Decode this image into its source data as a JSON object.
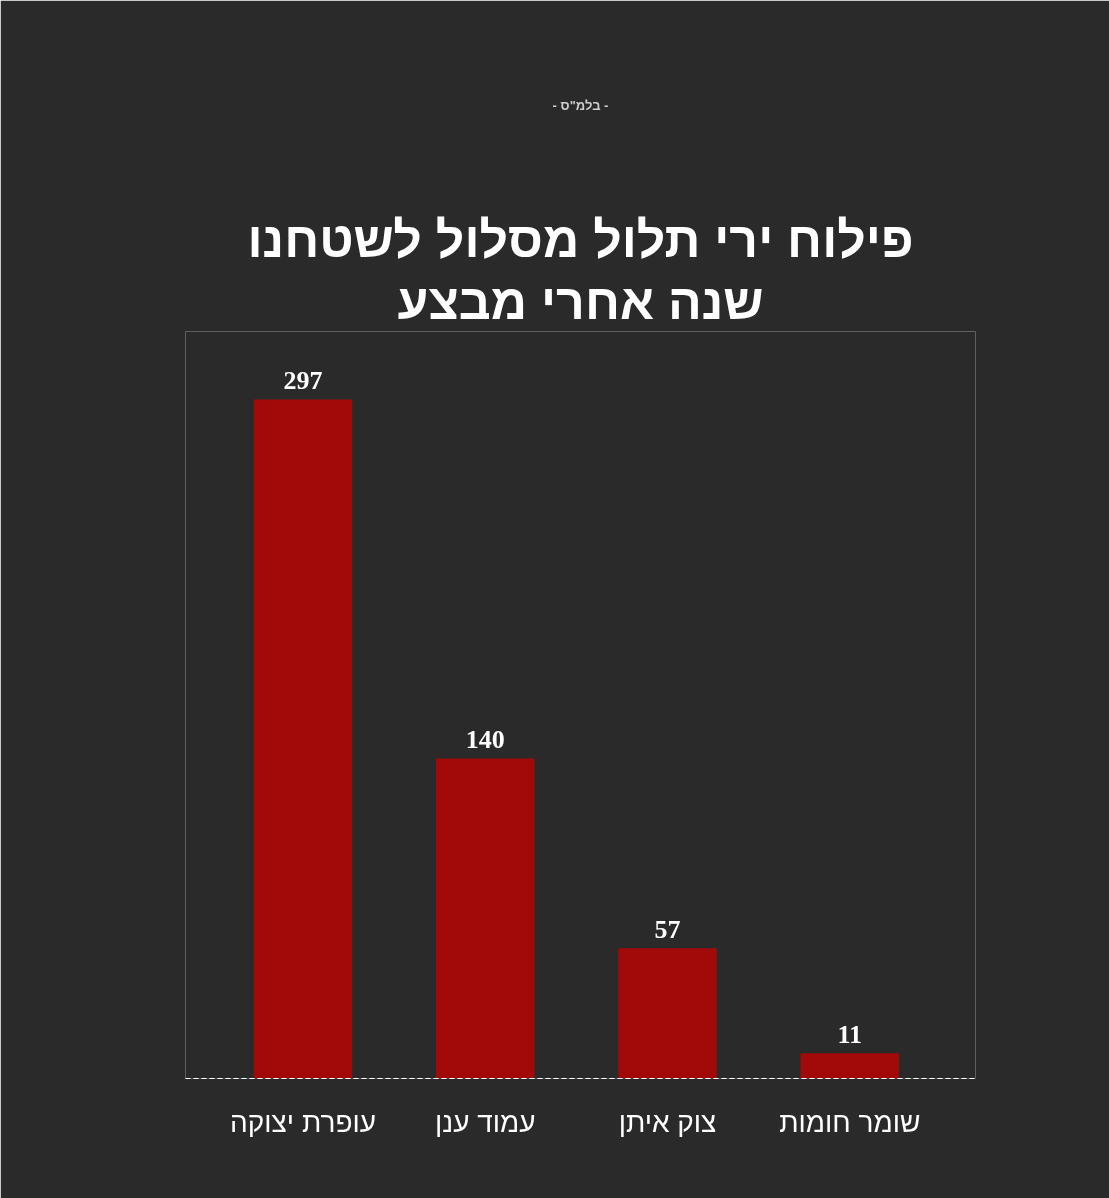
{
  "chart_data": {
    "type": "bar",
    "title": "פילוח ירי תלול מסלול לשטחנו",
    "subtitle": "שנה אחרי מבצע",
    "annotations": [
      "- בלמ\"ס -"
    ],
    "categories": [
      "עופרת יצוקה",
      "עמוד ענן",
      "צוק איתן",
      "שומר חומות"
    ],
    "values": [
      297,
      140,
      57,
      11
    ],
    "color": "#a20a0a",
    "data_labels": true,
    "grid": false
  }
}
